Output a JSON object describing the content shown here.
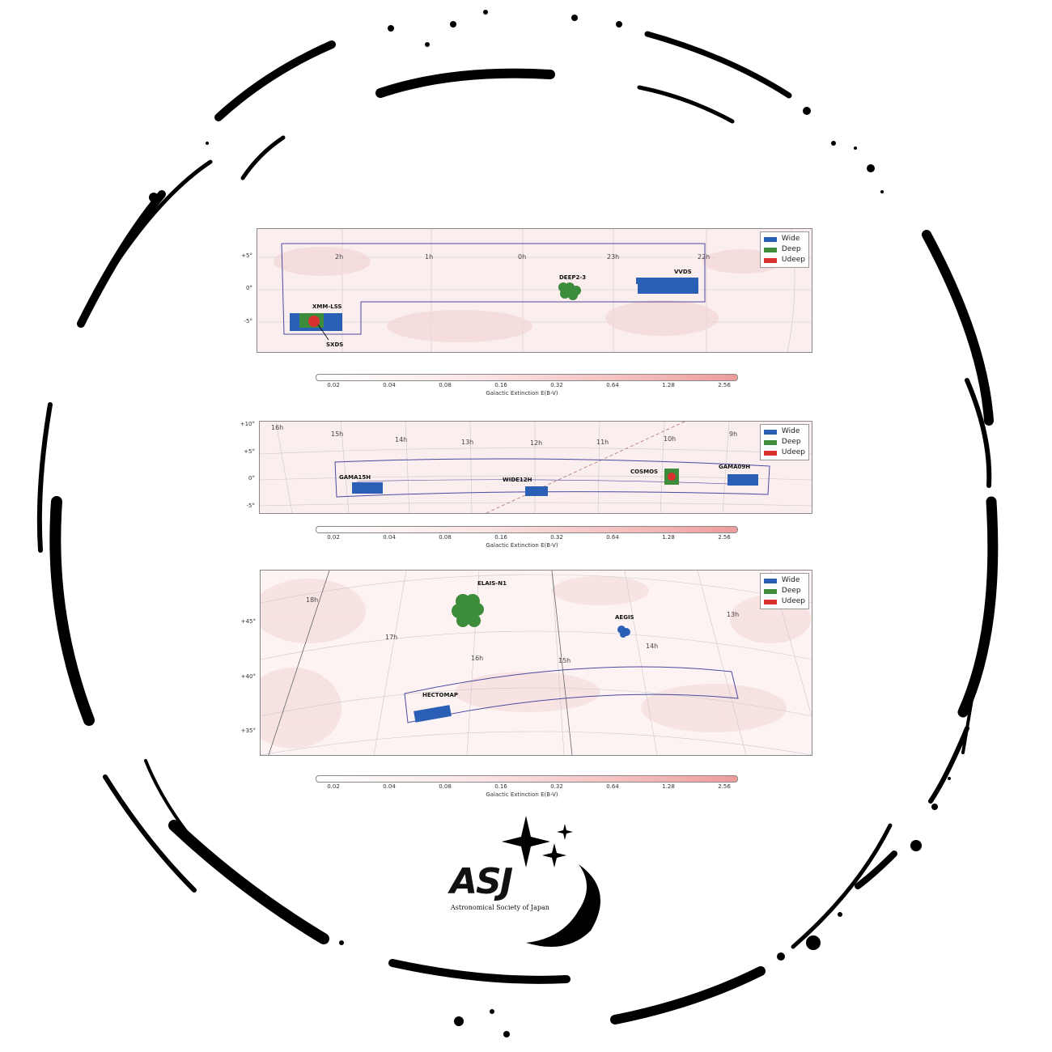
{
  "panels": [
    {
      "ra_labels": [
        "2h",
        "1h",
        "0h",
        "23h",
        "22h"
      ],
      "dec_labels": [
        "+5°",
        "0°",
        "-5°"
      ],
      "fields": [
        "XMM-LSS",
        "SXDS",
        "DEEP2-3",
        "VVDS"
      ]
    },
    {
      "ra_labels": [
        "16h",
        "15h",
        "14h",
        "13h",
        "12h",
        "11h",
        "10h",
        "9h"
      ],
      "dec_labels": [
        "+10°",
        "+5°",
        "0°",
        "-5°"
      ],
      "fields": [
        "GAMA15H",
        "WIDE12H",
        "COSMOS",
        "GAMA09H"
      ]
    },
    {
      "ra_labels": [
        "18h",
        "17h",
        "16h",
        "15h",
        "14h",
        "13h"
      ],
      "dec_labels": [
        "+45°",
        "+40°",
        "+35°"
      ],
      "fields": [
        "ELAIS-N1",
        "AEGIS",
        "HECTOMAP"
      ]
    }
  ],
  "legend": {
    "items": [
      {
        "label": "Wide",
        "color": "#2b5fb5"
      },
      {
        "label": "Deep",
        "color": "#3c8c3c"
      },
      {
        "label": "Udeep",
        "color": "#d93030"
      }
    ]
  },
  "colorbar": {
    "ticks": [
      "0.02",
      "0.04",
      "0.08",
      "0.16",
      "0.32",
      "0.64",
      "1.28",
      "2.56"
    ],
    "label": "Galactic Extinction E(B-V)"
  },
  "logo": {
    "letters": "ASJ",
    "subtitle": "Astronomical Society of Japan"
  },
  "colors": {
    "wide": "#2b5fb5",
    "deep": "#3c8c3c",
    "udeep": "#d93030",
    "footprint": "#4a4aa0",
    "frame": "#000000"
  }
}
